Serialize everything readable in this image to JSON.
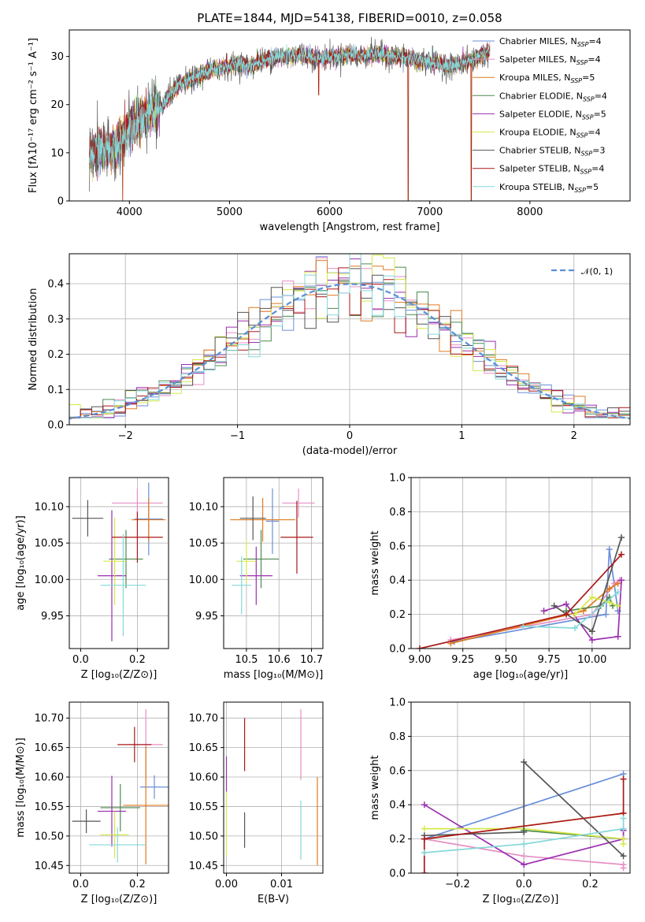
{
  "title": "PLATE=1844, MJD=54138, FIBERID=0010, z=0.058",
  "colors": {
    "chabrier_miles": "#6a8fd9",
    "salpeter_miles": "#e58fc4",
    "kroupa_miles": "#e07b20",
    "chabrier_elodie": "#4e8a4e",
    "salpeter_elodie": "#9a2fb0",
    "kroupa_elodie": "#d6e84a",
    "chabrier_stelib": "#555555",
    "salpeter_stelib": "#aa1a1a",
    "kroupa_stelib": "#86d8d8"
  },
  "chart_data": [
    {
      "id": "spectrum",
      "type": "line",
      "title": "PLATE=1844, MJD=54138, FIBERID=0010, z=0.058",
      "xlabel": "wavelength [Angstrom, rest frame]",
      "ylabel": "Flux [fλ10⁻¹⁷ erg cm⁻² s⁻¹ A⁻¹]",
      "xlim": [
        3400,
        9000
      ],
      "ylim": [
        0,
        35.5
      ],
      "xticks": [
        4000,
        5000,
        6000,
        7000,
        8000
      ],
      "yticks": [
        0,
        10,
        20,
        30
      ],
      "grid": false,
      "legend_position": "right",
      "legend": [
        "Chabrier MILES, N_SSP=4",
        "Salpeter MILES, N_SSP=4",
        "Kroupa MILES, N_SSP=5",
        "Chabrier ELODIE, N_SSP=4",
        "Salpeter ELODIE, N_SSP=5",
        "Kroupa ELODIE, N_SSP=4",
        "Chabrier STELIB, N_SSP=3",
        "Salpeter STELIB, N_SSP=4",
        "Kroupa STELIB, N_SSP=5"
      ],
      "continuum": [
        [
          3600,
          9
        ],
        [
          3700,
          11
        ],
        [
          3800,
          10
        ],
        [
          3900,
          12
        ],
        [
          4000,
          15
        ],
        [
          4100,
          17
        ],
        [
          4200,
          18
        ],
        [
          4300,
          19
        ],
        [
          4400,
          22
        ],
        [
          4500,
          24
        ],
        [
          4600,
          25
        ],
        [
          4700,
          26
        ],
        [
          4800,
          27
        ],
        [
          4900,
          27.5
        ],
        [
          5000,
          28
        ],
        [
          5100,
          28.5
        ],
        [
          5200,
          28
        ],
        [
          5300,
          29
        ],
        [
          5400,
          29.5
        ],
        [
          5500,
          30
        ],
        [
          5600,
          30
        ],
        [
          5700,
          30.5
        ],
        [
          5800,
          30
        ],
        [
          5900,
          29.5
        ],
        [
          6000,
          30
        ],
        [
          6100,
          30
        ],
        [
          6200,
          30.5
        ],
        [
          6300,
          30
        ],
        [
          6400,
          30.5
        ],
        [
          6500,
          30.5
        ],
        [
          6600,
          30
        ],
        [
          6700,
          30
        ],
        [
          6800,
          29.5
        ],
        [
          6900,
          29
        ],
        [
          7000,
          29
        ],
        [
          7100,
          28.5
        ],
        [
          7200,
          28
        ],
        [
          7300,
          28.5
        ],
        [
          7400,
          29
        ],
        [
          7500,
          30
        ],
        [
          7600,
          31
        ]
      ],
      "dips": [
        [
          3933,
          0
        ],
        [
          5890,
          22
        ],
        [
          6785,
          0
        ],
        [
          7415,
          0
        ]
      ]
    },
    {
      "id": "residuals",
      "type": "histogram",
      "xlabel": "(data-model)/error",
      "ylabel": "Normed distribution",
      "xlim": [
        -2.5,
        2.5
      ],
      "ylim": [
        0,
        0.485
      ],
      "xticks": [
        -2,
        -1,
        0,
        1,
        2
      ],
      "yticks": [
        0.0,
        0.1,
        0.2,
        0.3,
        0.4
      ],
      "grid": true,
      "legend_position": "top-right",
      "legend_label": "𝒩(0, 1)",
      "bin_width": 0.1,
      "reference": {
        "type": "gaussian",
        "mean": 0,
        "sigma": 1
      }
    },
    {
      "id": "age-z",
      "type": "errorbar",
      "xlabel": "Z [log₁₀(Z/Z⊙)]",
      "ylabel": "age  [log₁₀(age/yr)]",
      "xlim": [
        -0.04,
        0.31
      ],
      "ylim": [
        9.905,
        10.14
      ],
      "xticks": [
        0.0,
        0.2
      ],
      "yticks": [
        9.95,
        10.0,
        10.05,
        10.1
      ],
      "grid": true,
      "points": [
        {
          "model": "chabrier_miles",
          "x": 0.24,
          "xerr": 0.05,
          "y": 10.083,
          "yerr": 0.05
        },
        {
          "model": "salpeter_miles",
          "x": 0.2,
          "xerr": 0.09,
          "y": 10.105,
          "yerr": 0.02
        },
        {
          "model": "kroupa_miles",
          "x": 0.24,
          "xerr": 0.06,
          "y": 10.082,
          "yerr": 0.03
        },
        {
          "model": "chabrier_elodie",
          "x": 0.16,
          "xerr": 0.06,
          "y": 10.028,
          "yerr": 0.04
        },
        {
          "model": "salpeter_elodie",
          "x": 0.11,
          "xerr": 0.05,
          "y": 10.005,
          "yerr": 0.09
        },
        {
          "model": "kroupa_elodie",
          "x": 0.12,
          "xerr": 0.04,
          "y": 10.025,
          "yerr": 0.06
        },
        {
          "model": "chabrier_stelib",
          "x": 0.025,
          "xerr": 0.055,
          "y": 10.084,
          "yerr": 0.025
        },
        {
          "model": "salpeter_stelib",
          "x": 0.2,
          "xerr": 0.09,
          "y": 10.058,
          "yerr": 0.035
        },
        {
          "model": "kroupa_stelib",
          "x": 0.15,
          "xerr": 0.08,
          "y": 9.992,
          "yerr": 0.07
        }
      ]
    },
    {
      "id": "age-mass",
      "type": "errorbar",
      "xlabel": "mass [log₁₀(M/M⊙)]",
      "ylabel": "",
      "xlim": [
        10.43,
        10.735
      ],
      "ylim": [
        9.905,
        10.14
      ],
      "xticks": [
        10.5,
        10.6,
        10.7
      ],
      "yticks": [
        9.95,
        10.0,
        10.05,
        10.1
      ],
      "grid": true,
      "points": [
        {
          "model": "chabrier_miles",
          "x": 10.58,
          "xerr": 0.02,
          "y": 10.08,
          "yerr": 0.045
        },
        {
          "model": "salpeter_miles",
          "x": 10.66,
          "xerr": 0.05,
          "y": 10.105,
          "yerr": 0.02
        },
        {
          "model": "kroupa_miles",
          "x": 10.55,
          "xerr": 0.1,
          "y": 10.082,
          "yerr": 0.03
        },
        {
          "model": "chabrier_elodie",
          "x": 10.545,
          "xerr": 0.055,
          "y": 10.028,
          "yerr": 0.04
        },
        {
          "model": "salpeter_elodie",
          "x": 10.53,
          "xerr": 0.05,
          "y": 10.005,
          "yerr": 0.04
        },
        {
          "model": "kroupa_elodie",
          "x": 10.5,
          "xerr": 0.03,
          "y": 10.025,
          "yerr": 0.03
        },
        {
          "model": "chabrier_stelib",
          "x": 10.52,
          "xerr": 0.04,
          "y": 10.084,
          "yerr": 0.03
        },
        {
          "model": "salpeter_stelib",
          "x": 10.655,
          "xerr": 0.05,
          "y": 10.058,
          "yerr": 0.05
        },
        {
          "model": "kroupa_stelib",
          "x": 10.485,
          "xerr": 0.03,
          "y": 9.992,
          "yerr": 0.04
        }
      ]
    },
    {
      "id": "weight-age",
      "type": "line",
      "xlabel": "age  [log₁₀(age/yr)]",
      "ylabel": "mass weight",
      "xlim": [
        8.95,
        10.22
      ],
      "ylim": [
        0,
        1
      ],
      "xticks": [
        9.0,
        9.25,
        9.5,
        9.75,
        10.0
      ],
      "yticks": [
        0.0,
        0.2,
        0.4,
        0.6,
        0.8,
        1.0
      ],
      "grid": true,
      "series": [
        {
          "model": "chabrier_miles",
          "x": [
            9.2,
            10.08,
            10.1,
            10.15
          ],
          "y": [
            0.04,
            0.2,
            0.58,
            0.22
          ]
        },
        {
          "model": "salpeter_miles",
          "x": [
            9.18,
            10.0,
            10.13,
            10.16
          ],
          "y": [
            0.05,
            0.2,
            0.38,
            0.4
          ]
        },
        {
          "model": "kroupa_miles",
          "x": [
            9.18,
            9.95,
            10.1,
            10.15
          ],
          "y": [
            0.03,
            0.22,
            0.35,
            0.38
          ]
        },
        {
          "model": "chabrier_elodie",
          "x": [
            9.85,
            10.05,
            10.1,
            10.12
          ],
          "y": [
            0.22,
            0.25,
            0.3,
            0.25
          ]
        },
        {
          "model": "salpeter_elodie",
          "x": [
            9.72,
            9.85,
            10.0,
            10.15,
            10.17
          ],
          "y": [
            0.22,
            0.26,
            0.05,
            0.07,
            0.4
          ]
        },
        {
          "model": "kroupa_elodie",
          "x": [
            9.9,
            10.0,
            10.1,
            10.15
          ],
          "y": [
            0.2,
            0.3,
            0.27,
            0.25
          ]
        },
        {
          "model": "chabrier_stelib",
          "x": [
            9.78,
            10.0,
            10.17
          ],
          "y": [
            0.25,
            0.1,
            0.65
          ]
        },
        {
          "model": "salpeter_stelib",
          "x": [
            9.0,
            9.85,
            10.17
          ],
          "y": [
            0.0,
            0.2,
            0.55
          ]
        },
        {
          "model": "kroupa_stelib",
          "x": [
            9.6,
            9.9,
            10.15
          ],
          "y": [
            0.13,
            0.12,
            0.33
          ]
        }
      ]
    },
    {
      "id": "mass-z",
      "type": "errorbar",
      "xlabel": "Z [log₁₀(Z/Z⊙)]",
      "ylabel": "mass [log₁₀(M/M⊙)]",
      "xlim": [
        -0.04,
        0.31
      ],
      "ylim": [
        10.437,
        10.727
      ],
      "xticks": [
        0.0,
        0.2
      ],
      "yticks": [
        10.45,
        10.5,
        10.55,
        10.6,
        10.65,
        10.7
      ],
      "grid": true,
      "points": [
        {
          "model": "chabrier_miles",
          "x": 0.26,
          "xerr": 0.05,
          "y": 10.583,
          "yerr": 0.02
        },
        {
          "model": "salpeter_miles",
          "x": 0.23,
          "xerr": 0.06,
          "y": 10.655,
          "yerr": 0.06
        },
        {
          "model": "kroupa_miles",
          "x": 0.23,
          "xerr": 0.08,
          "y": 10.552,
          "yerr": 0.1
        },
        {
          "model": "chabrier_elodie",
          "x": 0.14,
          "xerr": 0.07,
          "y": 10.548,
          "yerr": 0.04
        },
        {
          "model": "salpeter_elodie",
          "x": 0.11,
          "xerr": 0.05,
          "y": 10.542,
          "yerr": 0.06
        },
        {
          "model": "kroupa_elodie",
          "x": 0.12,
          "xerr": 0.05,
          "y": 10.502,
          "yerr": 0.04
        },
        {
          "model": "chabrier_stelib",
          "x": 0.02,
          "xerr": 0.05,
          "y": 10.525,
          "yerr": 0.02
        },
        {
          "model": "salpeter_stelib",
          "x": 0.19,
          "xerr": 0.06,
          "y": 10.655,
          "yerr": 0.03
        },
        {
          "model": "kroupa_stelib",
          "x": 0.13,
          "xerr": 0.1,
          "y": 10.485,
          "yerr": 0.03
        }
      ]
    },
    {
      "id": "mass-ebv",
      "type": "errorbar",
      "xlabel": "E(B-V)",
      "ylabel": "",
      "xlim": [
        -0.0005,
        0.0175
      ],
      "ylim": [
        10.437,
        10.727
      ],
      "xticks": [
        0.0,
        0.01
      ],
      "yticks": [
        10.45,
        10.5,
        10.55,
        10.6,
        10.65,
        10.7
      ],
      "grid": true,
      "points": [
        {
          "model": "salpeter_miles",
          "x": 0.0135,
          "xerr": 0,
          "y": 10.655,
          "yerr": 0.06
        },
        {
          "model": "kroupa_miles",
          "x": 0.0165,
          "xerr": 0,
          "y": 10.525,
          "yerr": 0.075
        },
        {
          "model": "salpeter_elodie",
          "x": 0.0,
          "xerr": 0,
          "y": 10.605,
          "yerr": 0.03
        },
        {
          "model": "kroupa_elodie",
          "x": 0.0,
          "xerr": 0,
          "y": 10.52,
          "yerr": 0.055
        },
        {
          "model": "chabrier_stelib",
          "x": 0.0033,
          "xerr": 0,
          "y": 10.51,
          "yerr": 0.03
        },
        {
          "model": "salpeter_stelib",
          "x": 0.0033,
          "xerr": 0,
          "y": 10.655,
          "yerr": 0.045
        },
        {
          "model": "kroupa_stelib",
          "x": 0.0135,
          "xerr": 0,
          "y": 10.51,
          "yerr": 0.05
        }
      ]
    },
    {
      "id": "weight-z",
      "type": "line",
      "xlabel": "Z [log₁₀(Z/Z⊙)]",
      "ylabel": "mass weight",
      "xlim": [
        -0.34,
        0.32
      ],
      "ylim": [
        0,
        1
      ],
      "xticks": [
        -0.2,
        0.0,
        0.2
      ],
      "yticks": [
        0.0,
        0.2,
        0.4,
        0.6,
        0.8,
        1.0
      ],
      "grid": true,
      "series": [
        {
          "model": "chabrier_miles",
          "x": [
            -0.3,
            0.3
          ],
          "y": [
            0.2,
            0.58
          ]
        },
        {
          "model": "salpeter_miles",
          "x": [
            -0.3,
            0.0,
            0.3,
            0.3
          ],
          "y": [
            0.2,
            0.1,
            0.05,
            0.03
          ]
        },
        {
          "model": "kroupa_miles",
          "x": [
            -0.3,
            0.3
          ],
          "y": [
            0.2,
            0.35
          ]
        },
        {
          "model": "chabrier_elodie",
          "x": [
            0.0,
            0.3
          ],
          "y": [
            0.25,
            0.2
          ]
        },
        {
          "model": "salpeter_elodie",
          "x": [
            -0.3,
            0.0,
            0.3,
            0.3
          ],
          "y": [
            0.4,
            0.05,
            0.2,
            0.25
          ]
        },
        {
          "model": "kroupa_elodie",
          "x": [
            -0.3,
            0.0,
            0.3,
            0.3
          ],
          "y": [
            0.26,
            0.26,
            0.2,
            0.17
          ]
        },
        {
          "model": "chabrier_stelib",
          "x": [
            -0.3,
            0.0,
            0.0,
            0.3
          ],
          "y": [
            0.22,
            0.24,
            0.65,
            0.1
          ]
        },
        {
          "model": "salpeter_stelib",
          "x": [
            -0.3,
            -0.3,
            0.3,
            0.3
          ],
          "y": [
            0.0,
            0.2,
            0.35,
            0.55
          ]
        },
        {
          "model": "kroupa_stelib",
          "x": [
            -0.3,
            0.0,
            0.3,
            0.3
          ],
          "y": [
            0.12,
            0.17,
            0.26,
            0.32
          ]
        }
      ]
    }
  ]
}
